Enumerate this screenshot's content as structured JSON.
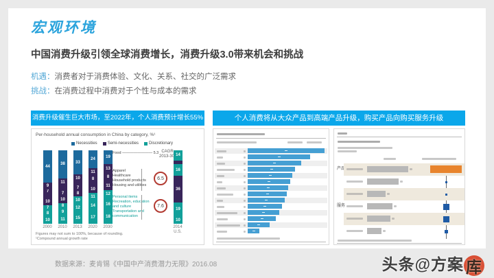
{
  "header": {
    "title": "宏观环境",
    "subtitle": "中国消费升级引领全球消费增长，消费升级3.0带来机会和挑战",
    "points": [
      {
        "label": "机遇：",
        "text": "消费者对于消费体验、文化、关系、社交的广泛需求"
      },
      {
        "label": "挑战：",
        "text": "在消费过程中消费对于个性与成本的需求"
      }
    ]
  },
  "panels": {
    "left_header": "消费升级催生巨大市场，至2022年，个人消费预计增长55%",
    "right_header": "个人消费将从大众产品到高端产品升级，购买产品向购买服务升级"
  },
  "footer": {
    "source": "数据来源：麦肯锡《中国中产消费潜力无限》2016.08",
    "watermark_text": "头条@方案",
    "watermark_seal": "库"
  },
  "chart_data": [
    {
      "type": "bar",
      "subtype": "stacked-vertical",
      "title": "Per-household annual consumption in China by category, %¹",
      "legend": [
        {
          "label": "Necessities",
          "color": "#1d6a9d"
        },
        {
          "label": "Semi-necessities",
          "color": "#38255a"
        },
        {
          "label": "Discretionary",
          "color": "#12a09a"
        }
      ],
      "cagr_header_line1": "CAGR",
      "cagr_header_line2": "2013-30¹",
      "categories": [
        "2000",
        "2010",
        "2013",
        "2020",
        "2030"
      ],
      "bars": [
        {
          "year": "2000",
          "segments": [
            {
              "v": 44,
              "c": "#1d6a9d"
            },
            {
              "v": 9,
              "c": "#38255a"
            },
            {
              "v": 7,
              "c": "#38255a"
            },
            {
              "v": 5,
              "c": "#38255a"
            },
            {
              "v": 10,
              "c": "#38255a"
            },
            {
              "v": 7,
              "c": "#12a09a"
            },
            {
              "v": 8,
              "c": "#12a09a"
            },
            {
              "v": 10,
              "c": "#12a09a"
            }
          ]
        },
        {
          "year": "2010",
          "segments": [
            {
              "v": 38,
              "c": "#1d6a9d"
            },
            {
              "v": 11,
              "c": "#38255a"
            },
            {
              "v": 6,
              "c": "#38255a"
            },
            {
              "v": 7,
              "c": "#38255a"
            },
            {
              "v": 10,
              "c": "#38255a"
            },
            {
              "v": 8,
              "c": "#12a09a"
            },
            {
              "v": 9,
              "c": "#12a09a"
            },
            {
              "v": 11,
              "c": "#12a09a"
            }
          ]
        },
        {
          "year": "2013",
          "segments": [
            {
              "v": 33,
              "c": "#1d6a9d"
            },
            {
              "v": 10,
              "c": "#38255a"
            },
            {
              "v": 5,
              "c": "#38255a"
            },
            {
              "v": 7,
              "c": "#38255a"
            },
            {
              "v": 8,
              "c": "#38255a"
            },
            {
              "v": 10,
              "c": "#12a09a"
            },
            {
              "v": 12,
              "c": "#12a09a"
            },
            {
              "v": 15,
              "c": "#12a09a"
            }
          ]
        },
        {
          "year": "2020",
          "segments": [
            {
              "v": 24,
              "c": "#1d6a9d"
            },
            {
              "v": 11,
              "c": "#38255a"
            },
            {
              "v": 8,
              "c": "#38255a"
            },
            {
              "v": 5,
              "c": "#38255a"
            },
            {
              "v": 10,
              "c": "#38255a"
            },
            {
              "v": 11,
              "c": "#12a09a"
            },
            {
              "v": 14,
              "c": "#12a09a"
            },
            {
              "v": 17,
              "c": "#12a09a"
            }
          ]
        },
        {
          "year": "2030",
          "segments": [
            {
              "v": 19,
              "c": "#1d6a9d"
            },
            {
              "v": 13,
              "c": "#38255a"
            },
            {
              "v": 8,
              "c": "#38255a"
            },
            {
              "v": 3,
              "c": "#38255a"
            },
            {
              "v": 11,
              "c": "#38255a"
            },
            {
              "v": 12,
              "c": "#12a09a"
            },
            {
              "v": 16,
              "c": "#12a09a"
            },
            {
              "v": 18,
              "c": "#12a09a"
            }
          ]
        }
      ],
      "us_bar": {
        "label_line1": "2014",
        "label_line2": "U.S.",
        "segments": [
          {
            "v": 14,
            "c": "#12a09a"
          },
          {
            "v": 5,
            "c": "#38255a"
          },
          {
            "v": 16,
            "c": "#12a09a"
          },
          {
            "v": 36,
            "c": "#38255a"
          },
          {
            "v": 19,
            "c": "#12a09a"
          },
          {
            "v": 10,
            "c": "#12a09a"
          }
        ]
      },
      "annotations": {
        "food_label": "Food",
        "food_cagr": "5.3",
        "group1_labels": [
          "Apparel",
          "Healthcare",
          "Household products",
          "Housing and utilities"
        ],
        "group1_cagr": "6.5",
        "group2_labels": [
          "Personal items",
          "Recreation, education",
          "and culture",
          "Transportation and",
          "communication"
        ],
        "group2_cagr": "7.6"
      },
      "footnote_line1": "Figures may not sum to 100%, because of rounding.",
      "footnote_line2": "¹Compound annual growth rate"
    },
    {
      "type": "bar",
      "subtype": "horizontal",
      "bar_color": "#459fd3",
      "labels_illegible": true,
      "relative_lengths": [
        100,
        81,
        70,
        62,
        58,
        55,
        53,
        51,
        48,
        45,
        41,
        37,
        29,
        15
      ]
    },
    {
      "type": "bar",
      "subtype": "horizontal-grouped",
      "bar_color": "#b8b8b8",
      "highlight_color": "#e8842d",
      "square_color": "#1f5ba5",
      "labels_illegible": true,
      "groups": [
        {
          "name": "产品",
          "rows": [
            {
              "len": 100,
              "right": "orange"
            },
            {
              "len": 77,
              "sq": 3
            },
            {
              "len": 45,
              "sq": 3
            }
          ]
        },
        {
          "name": "服务",
          "rows": [
            {
              "len": 61,
              "sq": 9
            },
            {
              "len": 56,
              "sq": 9
            },
            {
              "len": 35,
              "sq": 5
            }
          ]
        }
      ]
    }
  ]
}
